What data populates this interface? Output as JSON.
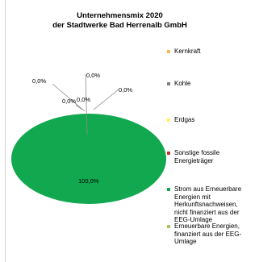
{
  "chart_data": {
    "type": "pie",
    "title_lines": [
      "Unternehmensmix 2020",
      "der Stadtwerke Bad Herrenalb GmbH"
    ],
    "slices": [
      {
        "label": "Kernkraft",
        "value": 0.0,
        "color": "#f6b94d",
        "data_label": "0,0%",
        "legend_lines": [
          "Kernkraft"
        ]
      },
      {
        "label": "Kohle",
        "value": 0.0,
        "color": "#7f7f7f",
        "data_label": "0,0%",
        "legend_lines": [
          "Kohle"
        ]
      },
      {
        "label": "Erdgas",
        "value": 0.0,
        "color": "#fff35c",
        "data_label": "0,0%",
        "legend_lines": [
          "Erdgas"
        ]
      },
      {
        "label": "Sonstige fossile Energieträger",
        "value": 0.0,
        "color": "#c0392b",
        "data_label": "0,0%",
        "legend_lines": [
          "Sonstige fossile",
          "Energieträger"
        ]
      },
      {
        "label": "Strom aus Erneuerbare Energien mit Herkunftsnachweisen, nicht finanziert aus der EEG-Umlage",
        "value": 100.0,
        "color": "#12a850",
        "data_label": "100,0%",
        "legend_lines": [
          "Strom aus Erneuerbare",
          "Energien mit",
          "Herkunftsnachweisen,",
          "nicht finanziert aus der",
          "EEG-Umlage"
        ]
      },
      {
        "label": "Erneuerbare Energien, finanziert aus der EEG-Umlage",
        "value": 0.0,
        "color": "#a6c45a",
        "data_label": "0,0%",
        "legend_lines": [
          "Erneuerbare Energien,",
          "finanziert aus der EEG-",
          "Umlage"
        ]
      }
    ],
    "legend_position": "right"
  }
}
